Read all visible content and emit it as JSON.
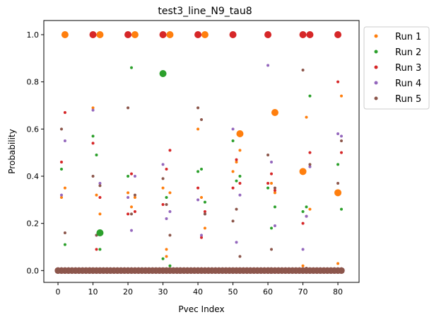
{
  "chart_data": {
    "type": "scatter",
    "title": "test3_line_N9_tau8",
    "xlabel": "Pvec Index",
    "ylabel": "Probability",
    "xlim": [
      -4.05,
      86.05
    ],
    "ylim": [
      -0.05,
      1.06
    ],
    "xticks": [
      "0",
      "10",
      "20",
      "30",
      "40",
      "50",
      "60",
      "70",
      "80"
    ],
    "yticks": [
      "0.0",
      "0.2",
      "0.4",
      "0.6",
      "0.8",
      "1.0"
    ],
    "grid": false,
    "legend_position": "outside-top-right",
    "baseline": {
      "x_start": 0,
      "x_end": 81,
      "y": 0.0,
      "note": "all runs place near-zero probability at every index"
    },
    "series": [
      {
        "name": "Run 1",
        "color": "#ff7f0e",
        "points": [
          [
            1,
            0.31
          ],
          [
            2,
            0.35
          ],
          [
            10,
            0.69
          ],
          [
            11,
            0.32
          ],
          [
            12,
            0.24
          ],
          [
            20,
            0.33
          ],
          [
            21,
            0.27
          ],
          [
            22,
            0.31
          ],
          [
            30,
            0.35
          ],
          [
            31,
            0.09
          ],
          [
            31,
            0.06
          ],
          [
            32,
            0.33
          ],
          [
            40,
            0.6
          ],
          [
            41,
            0.31
          ],
          [
            42,
            0.18
          ],
          [
            50,
            0.42
          ],
          [
            51,
            0.46
          ],
          [
            52,
            0.51
          ],
          [
            61,
            0.37
          ],
          [
            62,
            0.33
          ],
          [
            70,
            0.02
          ],
          [
            71,
            0.65
          ],
          [
            72,
            0.26
          ],
          [
            80,
            0.03
          ],
          [
            81,
            0.74
          ]
        ],
        "large_points": [
          [
            2,
            1.0
          ],
          [
            12,
            1.0
          ],
          [
            22,
            1.0
          ],
          [
            32,
            1.0
          ],
          [
            42,
            1.0
          ],
          [
            52,
            0.58
          ],
          [
            62,
            0.67
          ],
          [
            70,
            0.42
          ],
          [
            80,
            0.33
          ]
        ]
      },
      {
        "name": "Run 2",
        "color": "#2ca02c",
        "points": [
          [
            1,
            0.43
          ],
          [
            2,
            0.11
          ],
          [
            10,
            0.57
          ],
          [
            11,
            0.49
          ],
          [
            12,
            0.09
          ],
          [
            20,
            0.4
          ],
          [
            21,
            0.86
          ],
          [
            30,
            0.05
          ],
          [
            31,
            0.31
          ],
          [
            32,
            0.02
          ],
          [
            40,
            0.42
          ],
          [
            41,
            0.43
          ],
          [
            42,
            0.29
          ],
          [
            50,
            0.55
          ],
          [
            51,
            0.38
          ],
          [
            52,
            0.4
          ],
          [
            60,
            0.35
          ],
          [
            61,
            0.18
          ],
          [
            62,
            0.27
          ],
          [
            70,
            0.25
          ],
          [
            71,
            0.27
          ],
          [
            72,
            0.74
          ],
          [
            80,
            0.45
          ],
          [
            81,
            0.26
          ]
        ],
        "large_points": [
          [
            12,
            0.16
          ],
          [
            30,
            0.835
          ]
        ]
      },
      {
        "name": "Run 3",
        "color": "#d62728",
        "points": [
          [
            1,
            0.46
          ],
          [
            2,
            0.67
          ],
          [
            10,
            0.54
          ],
          [
            11,
            0.09
          ],
          [
            12,
            0.31
          ],
          [
            20,
            0.24
          ],
          [
            21,
            0.41
          ],
          [
            22,
            0.25
          ],
          [
            30,
            0.28
          ],
          [
            31,
            0.43
          ],
          [
            32,
            0.51
          ],
          [
            40,
            0.35
          ],
          [
            41,
            0.14
          ],
          [
            42,
            0.25
          ],
          [
            50,
            0.35
          ],
          [
            51,
            0.47
          ],
          [
            52,
            0.37
          ],
          [
            60,
            0.37
          ],
          [
            61,
            0.41
          ],
          [
            62,
            0.34
          ],
          [
            70,
            0.2
          ],
          [
            71,
            0.23
          ],
          [
            72,
            0.5
          ],
          [
            80,
            0.8
          ],
          [
            81,
            0.5
          ]
        ],
        "large_points": [
          [
            10,
            1.0
          ],
          [
            20,
            1.0
          ],
          [
            30,
            1.0
          ],
          [
            40,
            1.0
          ],
          [
            50,
            1.0
          ],
          [
            60,
            1.0
          ],
          [
            70,
            1.0
          ],
          [
            72,
            1.0
          ],
          [
            80,
            1.0
          ]
        ]
      },
      {
        "name": "Run 4",
        "color": "#9467bd",
        "points": [
          [
            1,
            0.32
          ],
          [
            2,
            0.55
          ],
          [
            10,
            0.68
          ],
          [
            11,
            0.15
          ],
          [
            12,
            0.37
          ],
          [
            20,
            0.31
          ],
          [
            21,
            0.17
          ],
          [
            22,
            0.4
          ],
          [
            30,
            0.45
          ],
          [
            31,
            0.22
          ],
          [
            32,
            0.25
          ],
          [
            40,
            0.3
          ],
          [
            41,
            0.15
          ],
          [
            42,
            0.24
          ],
          [
            50,
            0.6
          ],
          [
            51,
            0.12
          ],
          [
            52,
            0.32
          ],
          [
            60,
            0.87
          ],
          [
            61,
            0.46
          ],
          [
            62,
            0.19
          ],
          [
            70,
            0.09
          ],
          [
            71,
            0.23
          ],
          [
            72,
            0.44
          ],
          [
            80,
            0.58
          ],
          [
            81,
            0.57
          ]
        ],
        "large_points": []
      },
      {
        "name": "Run 5",
        "color": "#8c564b",
        "points": [
          [
            1,
            0.6
          ],
          [
            2,
            0.16
          ],
          [
            10,
            0.4
          ],
          [
            11,
            0.15
          ],
          [
            12,
            0.36
          ],
          [
            20,
            0.69
          ],
          [
            21,
            0.24
          ],
          [
            22,
            0.32
          ],
          [
            30,
            0.39
          ],
          [
            31,
            0.28
          ],
          [
            32,
            0.15
          ],
          [
            40,
            0.69
          ],
          [
            41,
            0.64
          ],
          [
            42,
            0.24
          ],
          [
            50,
            0.21
          ],
          [
            51,
            0.26
          ],
          [
            52,
            0.06
          ],
          [
            60,
            0.49
          ],
          [
            61,
            0.09
          ],
          [
            62,
            0.35
          ],
          [
            70,
            0.85
          ],
          [
            71,
            0.01
          ],
          [
            72,
            0.45
          ],
          [
            80,
            0.37
          ],
          [
            81,
            0.55
          ]
        ],
        "large_points": []
      }
    ]
  }
}
